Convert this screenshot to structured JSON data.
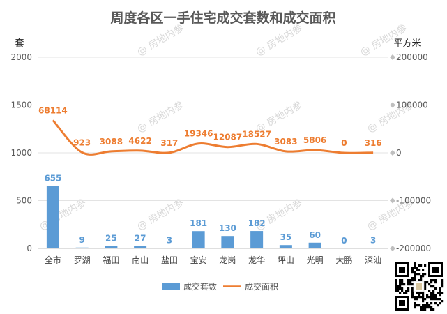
{
  "chart_data": {
    "type": "bar",
    "title": "周度各区一手住宅成交套数和成交面积",
    "y_left_label": "套",
    "y_right_label": "平方米",
    "ylim_left": [
      0,
      2000
    ],
    "ylim_right": [
      -200000,
      200000
    ],
    "yticks_left": [
      "0",
      "500",
      "1000",
      "1500",
      "2000"
    ],
    "yticks_right": [
      "-200000",
      "-100000",
      "0",
      "100000",
      "200000"
    ],
    "categories": [
      "全市",
      "罗湖",
      "福田",
      "南山",
      "盐田",
      "宝安",
      "龙岗",
      "龙华",
      "坪山",
      "光明",
      "大鹏",
      "深汕"
    ],
    "series": [
      {
        "name": "成交套数",
        "type": "bar",
        "axis": "left",
        "color": "#5b9bd5",
        "values": [
          655,
          9,
          25,
          27,
          3,
          181,
          130,
          182,
          35,
          60,
          0,
          3
        ]
      },
      {
        "name": "成交面积",
        "type": "line",
        "axis": "right",
        "color": "#ed7d31",
        "values": [
          68114,
          923,
          3088,
          4622,
          317,
          19346,
          12087,
          18527,
          3083,
          5806,
          0,
          316
        ]
      }
    ],
    "legend_position": "bottom",
    "grid": true
  },
  "watermark": "@ 房地内参"
}
